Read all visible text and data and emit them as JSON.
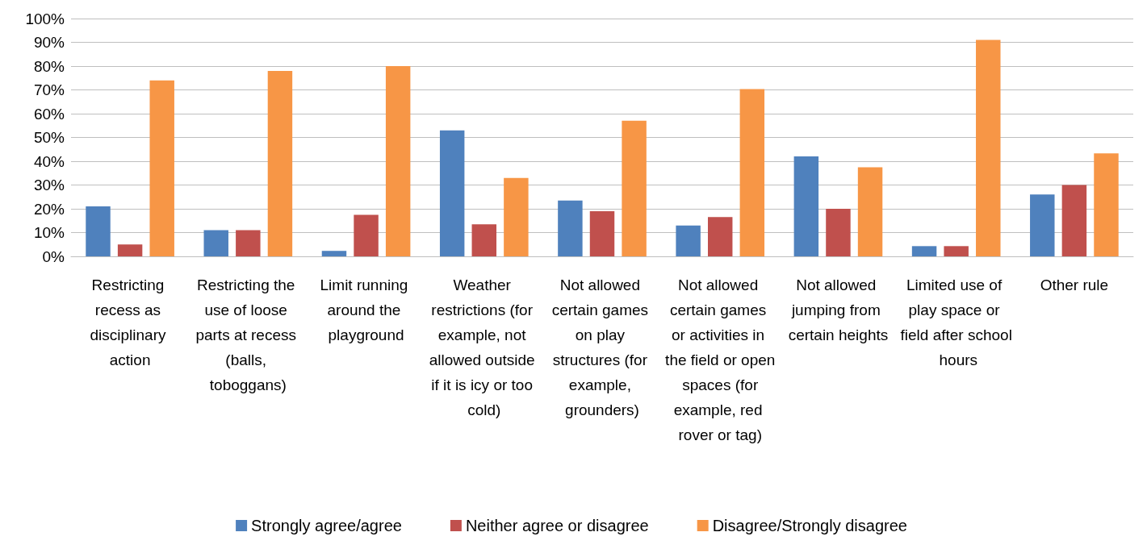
{
  "chart_data": {
    "type": "bar",
    "categories": [
      "Restricting recess as disciplinary action",
      "Restricting the use of loose parts at recess (balls, toboggans)",
      "Limit running around the playground",
      "Weather restrictions (for example, not allowed outside if it is icy or too cold)",
      "Not allowed certain games on play structures (for example, grounders)",
      "Not allowed certain games or activities in the field or open spaces (for example, red rover or tag)",
      "Not allowed jumping from certain heights",
      "Limited use of play space or field after school hours",
      "Other rule"
    ],
    "series": [
      {
        "name": "Strongly agree/agree",
        "color": "#4f81bd",
        "values": [
          21,
          11,
          2.3,
          53,
          23.5,
          13,
          42,
          4.3,
          26
        ]
      },
      {
        "name": "Neither agree or disagree",
        "color": "#c0504d",
        "values": [
          5,
          11,
          17.5,
          13.5,
          19,
          16.5,
          20,
          4.3,
          30
        ]
      },
      {
        "name": "Disagree/Strongly disagree",
        "color": "#f79646",
        "values": [
          74,
          78,
          80,
          33,
          57,
          70.3,
          37.5,
          91,
          43.3
        ]
      }
    ],
    "ylim": [
      0,
      100
    ],
    "yticks": [
      {
        "value": 0,
        "label": "0%"
      },
      {
        "value": 10,
        "label": "10%"
      },
      {
        "value": 20,
        "label": "20%"
      },
      {
        "value": 30,
        "label": "30%"
      },
      {
        "value": 40,
        "label": "40%"
      },
      {
        "value": 50,
        "label": "50%"
      },
      {
        "value": 60,
        "label": "60%"
      },
      {
        "value": 70,
        "label": "70%"
      },
      {
        "value": 80,
        "label": "80%"
      },
      {
        "value": 90,
        "label": "90%"
      },
      {
        "value": 100,
        "label": "100%"
      }
    ],
    "grid": "y",
    "legend": "bottom"
  }
}
